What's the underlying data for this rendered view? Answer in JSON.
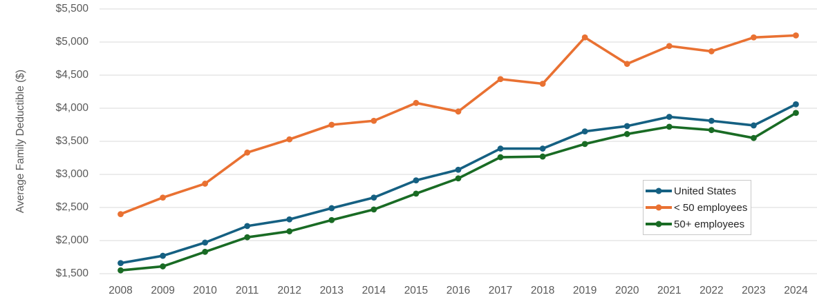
{
  "chart_data": {
    "type": "line",
    "title": "",
    "ylabel": "Average Family Deductible ($)",
    "xlabel": "",
    "categories": [
      "2008",
      "2009",
      "2010",
      "2011",
      "2012",
      "2013",
      "2014",
      "2015",
      "2016",
      "2017",
      "2018",
      "2019",
      "2020",
      "2021",
      "2022",
      "2023",
      "2024"
    ],
    "series": [
      {
        "name": "United States",
        "color": "#156082",
        "values": [
          1660,
          1770,
          1970,
          2220,
          2320,
          2490,
          2650,
          2910,
          3070,
          3390,
          3390,
          3650,
          3730,
          3870,
          3810,
          3740,
          4060
        ]
      },
      {
        "name": "< 50 employees",
        "color": "#E97132",
        "values": [
          2400,
          2650,
          2860,
          3330,
          3530,
          3750,
          3810,
          4080,
          3950,
          4440,
          4370,
          5070,
          4670,
          4940,
          4860,
          5070,
          5100
        ]
      },
      {
        "name": "50+ employees",
        "color": "#196B24",
        "values": [
          1550,
          1610,
          1830,
          2050,
          2140,
          2310,
          2470,
          2710,
          2940,
          3260,
          3270,
          3460,
          3610,
          3720,
          3670,
          3550,
          3930
        ]
      }
    ],
    "ylim": [
      1500,
      5500
    ],
    "yticks": [
      {
        "value": 5500,
        "label": "$5,500"
      },
      {
        "value": 5000,
        "label": "$5,000"
      },
      {
        "value": 4500,
        "label": "$4,500"
      },
      {
        "value": 4000,
        "label": "$4,000"
      },
      {
        "value": 3500,
        "label": "$3,500"
      },
      {
        "value": 3000,
        "label": "$3,000"
      },
      {
        "value": 2500,
        "label": "$2,500"
      },
      {
        "value": 2000,
        "label": "$2,000"
      },
      {
        "value": 1500,
        "label": "$1,500"
      }
    ],
    "grid": "horizontal",
    "legend_position": "inside-right",
    "styles": {
      "grid_color": "#D9D9D9",
      "axis_text_color": "#595959",
      "legend_text_color": "#262626",
      "legend_border_color": "#C8C8C8",
      "background": "#FFFFFF"
    }
  }
}
